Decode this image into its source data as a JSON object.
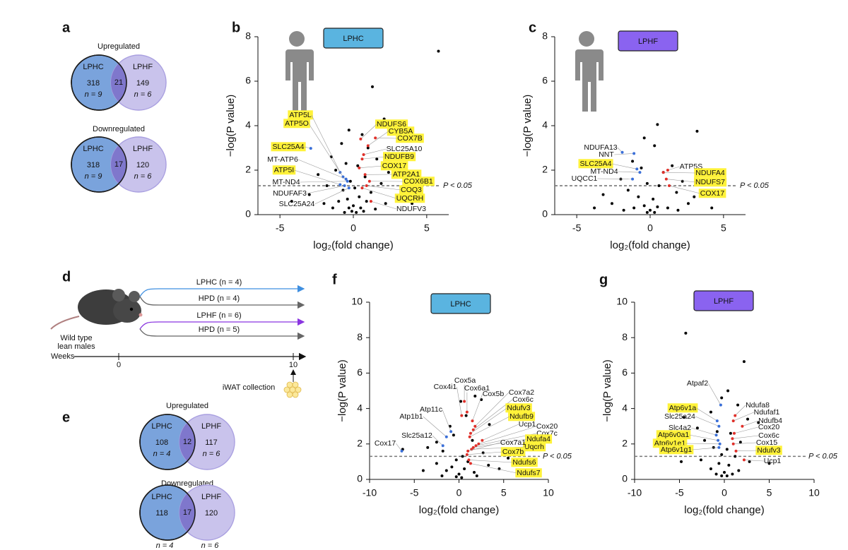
{
  "venn_panels": [
    {
      "letter": "a",
      "diagrams": [
        {
          "title": "Upregulated",
          "left": "LPHC",
          "right": "LPHF",
          "left_count": 318,
          "overlap": 21,
          "right_count": 149,
          "left_n": "n = 9",
          "right_n": "n = 6"
        },
        {
          "title": "Downregulated",
          "left": "LPHC",
          "right": "LPHF",
          "left_count": 318,
          "overlap": 17,
          "right_count": 120,
          "left_n": "n = 9",
          "right_n": "n = 6"
        }
      ]
    },
    {
      "letter": "e",
      "diagrams": [
        {
          "title": "Upregulated",
          "left": "LPHC",
          "right": "LPHF",
          "left_count": 108,
          "overlap": 12,
          "right_count": 117,
          "left_n": "n = 4",
          "right_n": "n = 6"
        },
        {
          "title": "Downregulated",
          "left": "LPHC",
          "right": "LPHF",
          "left_count": 118,
          "overlap": 17,
          "right_count": 120,
          "left_n": "n = 4",
          "right_n": "n = 6"
        }
      ]
    }
  ],
  "diagram": {
    "letter": "d",
    "groups": [
      "LPHC (n = 4)",
      "HPD (n = 4)",
      "LPHF (n = 6)",
      "HPD (n = 5)"
    ],
    "group_colors": [
      "#3f8fe0",
      "#666666",
      "#8a35e0",
      "#666666"
    ],
    "mouse_label": [
      "Wild type",
      "lean males"
    ],
    "axis_label": "Weeks",
    "weeks": [
      0,
      10
    ],
    "collection": "iWAT collection"
  },
  "chart_data": [
    {
      "type": "scatter",
      "letter": "b",
      "tag": "LPHC",
      "tag_color": "#5ab4e0",
      "xlabel": "log₂(fold change)",
      "ylabel": "−log(P value)",
      "xlim": [
        -6.5,
        6.5
      ],
      "xticks": [
        -5,
        0,
        5
      ],
      "ylim": [
        0,
        8
      ],
      "yticks": [
        0,
        2,
        4,
        6,
        8
      ],
      "threshold": {
        "value": 1.3,
        "label": "P < 0.05"
      },
      "highlight_color": "#fff23a",
      "up_color": "#e0302a",
      "down_color": "#3a6fd8",
      "series": [
        {
          "color": "#000000",
          "x": [
            5.8,
            1.3,
            2.1,
            -0.3,
            0.6,
            -0.8,
            1.0,
            -1.5,
            1.6,
            -0.5,
            0.3,
            -1.2,
            2.4,
            -2.4,
            0.8,
            -0.2,
            1.9,
            -1.8,
            0.1,
            -0.7,
            1.2,
            -3.0,
            3.2,
            0.4,
            -0.4,
            -1.0,
            0.9,
            -2.0,
            2.2,
            0.0,
            -0.3,
            0.5,
            -1.4,
            1.5,
            -0.1,
            0.2,
            -0.6,
            0.7,
            -4.2,
            4.0
          ],
          "y": [
            7.35,
            5.75,
            4.3,
            3.8,
            3.6,
            3.2,
            3.0,
            2.6,
            2.5,
            2.3,
            2.2,
            2.0,
            1.9,
            1.8,
            1.7,
            1.5,
            1.4,
            1.3,
            1.2,
            1.1,
            1.0,
            0.9,
            0.8,
            0.8,
            0.7,
            0.6,
            0.6,
            0.5,
            0.5,
            0.4,
            0.3,
            0.3,
            0.3,
            0.25,
            0.15,
            0.1,
            0.1,
            0.15,
            0.6,
            0.5
          ]
        }
      ],
      "annotations": [
        {
          "text": "ATP5L",
          "x": -0.9,
          "y": 1.9,
          "highlight": true
        },
        {
          "text": "ATP5O",
          "x": -0.7,
          "y": 1.7,
          "highlight": true
        },
        {
          "text": "SLC25A4",
          "x": -2.9,
          "y": 2.98,
          "highlight": true
        },
        {
          "text": "MT-ATP6",
          "x": -0.5,
          "y": 1.6,
          "highlight": false
        },
        {
          "text": "ATP5I",
          "x": -0.9,
          "y": 1.35,
          "highlight": true
        },
        {
          "text": "MT-ND4",
          "x": -0.4,
          "y": 1.5,
          "highlight": false
        },
        {
          "text": "NDUFAF3",
          "x": -0.6,
          "y": 1.3,
          "highlight": false
        },
        {
          "text": "SLC25A24",
          "x": -0.3,
          "y": 1.2,
          "highlight": false
        },
        {
          "text": "NDUFS6",
          "x": 0.5,
          "y": 3.4,
          "highlight": true
        },
        {
          "text": "CYB5A",
          "x": 1.0,
          "y": 3.1,
          "highlight": true
        },
        {
          "text": "COX7B",
          "x": 1.5,
          "y": 3.45,
          "highlight": true
        },
        {
          "text": "SLC25A10",
          "x": 0.7,
          "y": 2.7,
          "highlight": false
        },
        {
          "text": "NDUFB9",
          "x": 0.6,
          "y": 2.5,
          "highlight": true
        },
        {
          "text": "COX17",
          "x": 0.4,
          "y": 2.1,
          "highlight": true
        },
        {
          "text": "ATP2A1",
          "x": 0.8,
          "y": 1.8,
          "highlight": true
        },
        {
          "text": "COX6B1",
          "x": 1.1,
          "y": 1.5,
          "highlight": true
        },
        {
          "text": "COQ3",
          "x": 0.9,
          "y": 1.3,
          "highlight": true
        },
        {
          "text": "UQCRH",
          "x": 0.6,
          "y": 1.2,
          "highlight": true
        },
        {
          "text": "NDUFV3",
          "x": 1.2,
          "y": 0.6,
          "highlight": false
        }
      ]
    },
    {
      "type": "scatter",
      "letter": "c",
      "tag": "LPHF",
      "tag_color": "#8a63f0",
      "xlabel": "log₂(fold change)",
      "ylabel": "−log(P value)",
      "xlim": [
        -6.5,
        6.5
      ],
      "xticks": [
        -5,
        0,
        5
      ],
      "ylim": [
        0,
        8
      ],
      "yticks": [
        0,
        2,
        4,
        6,
        8
      ],
      "threshold": {
        "value": 1.3,
        "label": "P < 0.05"
      },
      "highlight_color": "#fff23a",
      "up_color": "#e0302a",
      "down_color": "#3a6fd8",
      "series": [
        {
          "color": "#000000",
          "x": [
            3.2,
            0.5,
            -0.4,
            0.3,
            -1.2,
            1.5,
            -0.6,
            0.9,
            -2.0,
            2.2,
            -0.2,
            0.6,
            -1.5,
            1.8,
            -3.2,
            3.0,
            -0.8,
            0.2,
            -2.6,
            2.6,
            -0.4,
            0.5,
            -1.1,
            1.2,
            0.0,
            -0.2,
            0.3,
            -3.8,
            4.2,
            -1.8,
            1.9
          ],
          "y": [
            3.75,
            4.05,
            3.45,
            3.1,
            2.4,
            2.2,
            2.1,
            1.9,
            1.6,
            1.5,
            1.4,
            1.3,
            1.1,
            1.0,
            0.9,
            0.8,
            0.8,
            0.7,
            0.5,
            0.5,
            0.4,
            0.35,
            0.3,
            0.3,
            0.2,
            0.1,
            0.1,
            0.3,
            0.3,
            0.2,
            0.2
          ]
        }
      ],
      "annotations": [
        {
          "text": "NDUFA13",
          "x": -1.9,
          "y": 2.8,
          "highlight": false
        },
        {
          "text": "NNT",
          "x": -1.1,
          "y": 2.75,
          "highlight": false
        },
        {
          "text": "SLC25A4",
          "x": -0.9,
          "y": 2.05,
          "highlight": true
        },
        {
          "text": "MT-ND4",
          "x": -0.7,
          "y": 1.9,
          "highlight": false
        },
        {
          "text": "UQCC1",
          "x": -1.2,
          "y": 1.6,
          "highlight": false
        },
        {
          "text": "ATP5S",
          "x": 1.2,
          "y": 2.0,
          "highlight": false
        },
        {
          "text": "NDUFA4",
          "x": 0.9,
          "y": 1.9,
          "highlight": true
        },
        {
          "text": "NDUFS7",
          "x": 1.1,
          "y": 1.6,
          "highlight": true
        },
        {
          "text": "COX17",
          "x": 1.3,
          "y": 1.3,
          "highlight": true
        }
      ]
    },
    {
      "type": "scatter",
      "letter": "f",
      "tag": "LPHC",
      "tag_color": "#5ab4e0",
      "xlabel": "log₂(fold change)",
      "ylabel": "−log(P value)",
      "xlim": [
        -10,
        10
      ],
      "xticks": [
        -10,
        -5,
        0,
        5,
        10
      ],
      "ylim": [
        0,
        10
      ],
      "yticks": [
        0,
        2,
        4,
        6,
        8,
        10
      ],
      "threshold": {
        "value": 1.3,
        "label": "P < 0.05"
      },
      "highlight_color": "#fff23a",
      "up_color": "#e0302a",
      "down_color": "#3a6fd8",
      "series": [
        {
          "color": "#000000",
          "x": [
            -6.3,
            -3.5,
            -2.5,
            -1.0,
            0.2,
            1.8,
            2.5,
            3.4,
            0.8,
            -0.6,
            1.5,
            -1.8,
            2.7,
            0.4,
            -0.3,
            1.0,
            -2.5,
            3.3,
            -0.8,
            0.6,
            -1.4,
            1.7,
            0.0,
            -0.3,
            0.3,
            -4.0,
            4.5,
            -1.9,
            2.0,
            5.5
          ],
          "y": [
            1.7,
            1.8,
            2.1,
            3.0,
            4.4,
            4.7,
            4.5,
            3.1,
            3.6,
            2.5,
            2.2,
            1.6,
            1.5,
            1.3,
            1.1,
            1.0,
            0.9,
            0.8,
            0.7,
            0.6,
            0.5,
            0.4,
            0.3,
            0.15,
            0.1,
            0.5,
            0.6,
            0.2,
            0.2,
            1.2
          ]
        }
      ],
      "annotations": [
        {
          "text": "Cox17",
          "x": -6.4,
          "y": 1.6,
          "highlight": false
        },
        {
          "text": "Slc25a12",
          "x": -1.8,
          "y": 1.9,
          "highlight": false
        },
        {
          "text": "Atp1b1",
          "x": -1.4,
          "y": 2.4,
          "highlight": false
        },
        {
          "text": "Atp11c",
          "x": -0.9,
          "y": 2.7,
          "highlight": false
        },
        {
          "text": "Cox4i1",
          "x": 0.3,
          "y": 3.6,
          "highlight": false
        },
        {
          "text": "Cox5a",
          "x": 0.6,
          "y": 4.4,
          "highlight": false
        },
        {
          "text": "Cox6a1",
          "x": 0.9,
          "y": 3.8,
          "highlight": false
        },
        {
          "text": "Cox5b",
          "x": 1.5,
          "y": 3.3,
          "highlight": false
        },
        {
          "text": "Cox7a2",
          "x": 1.8,
          "y": 3.0,
          "highlight": false
        },
        {
          "text": "Cox6c",
          "x": 1.6,
          "y": 2.8,
          "highlight": false
        },
        {
          "text": "Ndufv3",
          "x": 1.3,
          "y": 2.6,
          "highlight": true
        },
        {
          "text": "Ndufb9",
          "x": 1.2,
          "y": 2.4,
          "highlight": true
        },
        {
          "text": "Ucp1",
          "x": 2.6,
          "y": 2.2,
          "highlight": false
        },
        {
          "text": "Cox20",
          "x": 2.2,
          "y": 2.0,
          "highlight": false
        },
        {
          "text": "Cox7c",
          "x": 1.9,
          "y": 1.9,
          "highlight": false
        },
        {
          "text": "Ndufa4",
          "x": 1.6,
          "y": 1.8,
          "highlight": true
        },
        {
          "text": "Uqcrh",
          "x": 1.4,
          "y": 1.7,
          "highlight": true
        },
        {
          "text": "Cox7a1",
          "x": 1.0,
          "y": 1.6,
          "highlight": false
        },
        {
          "text": "Cox7b",
          "x": 0.9,
          "y": 1.4,
          "highlight": true
        },
        {
          "text": "Ndufs6",
          "x": 1.1,
          "y": 1.1,
          "highlight": true
        },
        {
          "text": "Ndufs7",
          "x": 1.3,
          "y": 0.9,
          "highlight": true
        }
      ]
    },
    {
      "type": "scatter",
      "letter": "g",
      "tag": "LPHF",
      "tag_color": "#8a63f0",
      "xlabel": "log₂(fold change)",
      "ylabel": "−log(P value)",
      "xlim": [
        -10,
        10
      ],
      "xticks": [
        -10,
        -5,
        0,
        5,
        10
      ],
      "ylim": [
        0,
        10
      ],
      "yticks": [
        0,
        2,
        4,
        6,
        8,
        10
      ],
      "threshold": {
        "value": 1.3,
        "label": "P < 0.05"
      },
      "highlight_color": "#fff23a",
      "up_color": "#e0302a",
      "down_color": "#3a6fd8",
      "series": [
        {
          "color": "#000000",
          "x": [
            -4.3,
            2.2,
            0.4,
            -0.3,
            1.5,
            -1.5,
            -4.5,
            2.6,
            3.8,
            -3.0,
            -0.8,
            0.7,
            -2.2,
            1.8,
            -1.2,
            0.3,
            -0.3,
            1.2,
            -2.6,
            2.8,
            -0.6,
            0.5,
            -1.5,
            1.6,
            0.0,
            -0.3,
            0.3,
            -4.8,
            5.0,
            -0.9,
            0.9
          ],
          "y": [
            8.25,
            6.65,
            5.0,
            4.6,
            4.2,
            3.8,
            3.5,
            3.4,
            3.2,
            2.9,
            2.7,
            2.6,
            2.2,
            2.1,
            1.8,
            1.7,
            1.4,
            1.3,
            1.1,
            1.0,
            0.9,
            0.8,
            0.6,
            0.5,
            0.4,
            0.2,
            0.2,
            1.0,
            0.9,
            0.3,
            0.3
          ]
        }
      ],
      "annotations": [
        {
          "text": "Atpaf2",
          "x": -0.4,
          "y": 4.2,
          "highlight": false
        },
        {
          "text": "Atp6v1a",
          "x": -0.8,
          "y": 3.3,
          "highlight": true
        },
        {
          "text": "Slc25a24",
          "x": -0.6,
          "y": 3.0,
          "highlight": false
        },
        {
          "text": "Slc4a2",
          "x": -0.9,
          "y": 2.5,
          "highlight": false
        },
        {
          "text": "Atp6v0a1",
          "x": -0.7,
          "y": 2.2,
          "highlight": true
        },
        {
          "text": "Atp6v1e1",
          "x": -0.5,
          "y": 2.0,
          "highlight": true
        },
        {
          "text": "Atp6v1g1",
          "x": -0.6,
          "y": 1.8,
          "highlight": true
        },
        {
          "text": "Ndufa8",
          "x": 1.2,
          "y": 3.6,
          "highlight": false
        },
        {
          "text": "Ndufaf1",
          "x": 1.0,
          "y": 3.3,
          "highlight": false
        },
        {
          "text": "Ndufb4",
          "x": 2.0,
          "y": 3.0,
          "highlight": false
        },
        {
          "text": "Cox20",
          "x": 1.1,
          "y": 2.6,
          "highlight": false
        },
        {
          "text": "Cox6c",
          "x": 0.9,
          "y": 2.3,
          "highlight": false
        },
        {
          "text": "Cox15",
          "x": 1.0,
          "y": 2.0,
          "highlight": false
        },
        {
          "text": "Ndufv3",
          "x": 1.3,
          "y": 1.6,
          "highlight": true
        },
        {
          "text": "Ucp1",
          "x": 2.2,
          "y": 1.1,
          "highlight": false
        }
      ]
    }
  ]
}
